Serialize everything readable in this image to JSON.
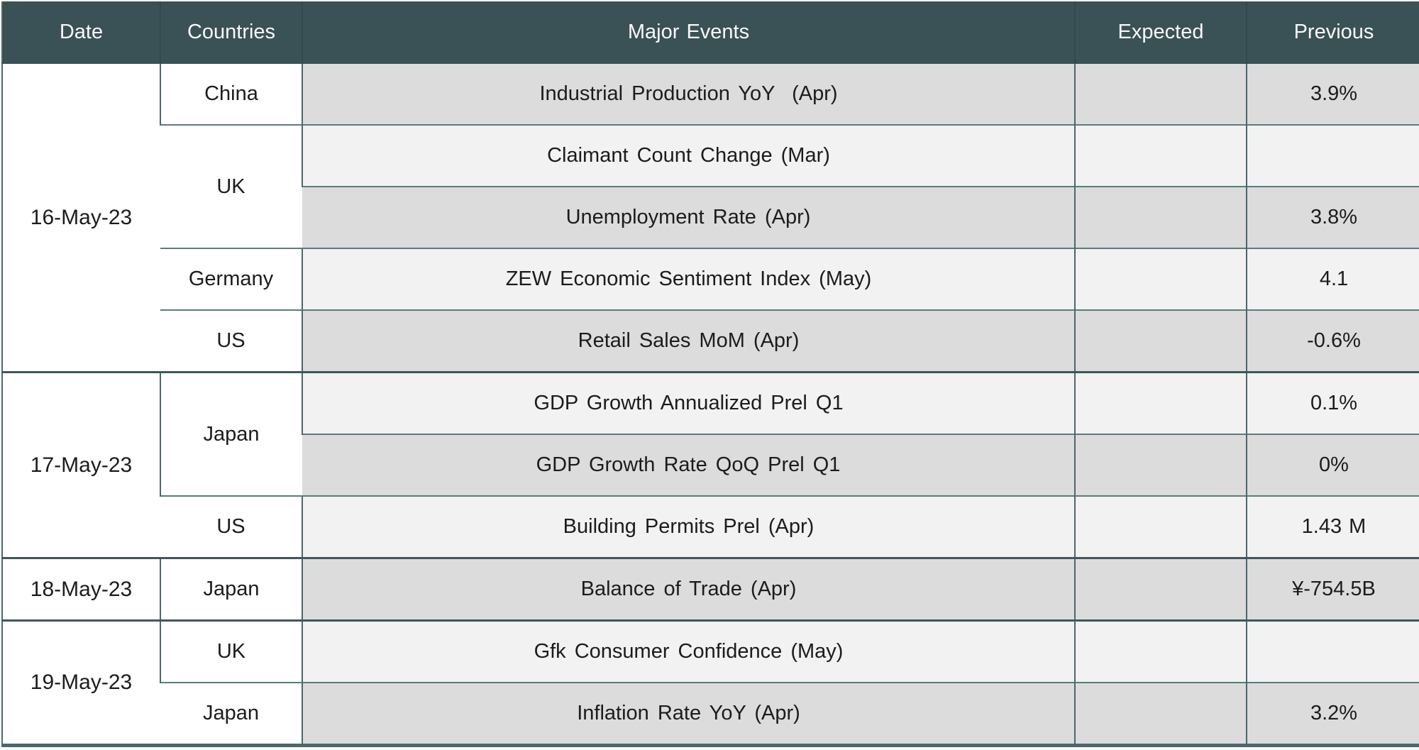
{
  "colors": {
    "header_bg": "#3a5156",
    "header_text": "#f8f8f8",
    "row_dark": "#dcdcdc",
    "row_light": "#f2f2f2",
    "row_border": "#5e7a7d",
    "col_border": "#4b686b",
    "group_border": "#3e585b",
    "frame_border": "#4b686b"
  },
  "table": {
    "columns": [
      "Date",
      "Countries",
      "Major Events",
      "Expected",
      "Previous"
    ],
    "groups": [
      {
        "date": "16-May-23",
        "entries": [
          {
            "country": "China",
            "events": [
              {
                "event": "Industrial Production YoY  (Apr)",
                "expected": "",
                "previous": "3.9%"
              }
            ]
          },
          {
            "country": "UK",
            "events": [
              {
                "event": "Claimant Count Change (Mar)",
                "expected": "",
                "previous": ""
              },
              {
                "event": "Unemployment Rate (Apr)",
                "expected": "",
                "previous": "3.8%"
              }
            ]
          },
          {
            "country": "Germany",
            "events": [
              {
                "event": "ZEW Economic Sentiment Index (May)",
                "expected": "",
                "previous": "4.1"
              }
            ]
          },
          {
            "country": "US",
            "events": [
              {
                "event": "Retail Sales MoM (Apr)",
                "expected": "",
                "previous": "-0.6%"
              }
            ]
          }
        ]
      },
      {
        "date": "17-May-23",
        "entries": [
          {
            "country": "Japan",
            "events": [
              {
                "event": "GDP Growth Annualized Prel Q1",
                "expected": "",
                "previous": "0.1%"
              },
              {
                "event": "GDP Growth Rate QoQ Prel Q1",
                "expected": "",
                "previous": "0%"
              }
            ]
          },
          {
            "country": "US",
            "events": [
              {
                "event": "Building Permits Prel (Apr)",
                "expected": "",
                "previous": "1.43 M"
              }
            ]
          }
        ]
      },
      {
        "date": "18-May-23",
        "entries": [
          {
            "country": "Japan",
            "events": [
              {
                "event": "Balance of Trade (Apr)",
                "expected": "",
                "previous": "¥-754.5B"
              }
            ]
          }
        ]
      },
      {
        "date": "19-May-23",
        "entries": [
          {
            "country": "UK",
            "events": [
              {
                "event": "Gfk Consumer Confidence (May)",
                "expected": "",
                "previous": ""
              }
            ]
          },
          {
            "country": "Japan",
            "events": [
              {
                "event": "Inflation Rate YoY (Apr)",
                "expected": "",
                "previous": "3.2%"
              }
            ]
          }
        ]
      }
    ]
  },
  "chart_data": {
    "type": "table",
    "columns": [
      "Date",
      "Countries",
      "Major Events",
      "Expected",
      "Previous"
    ],
    "rows": [
      [
        "16-May-23",
        "China",
        "Industrial Production YoY (Apr)",
        "",
        "3.9%"
      ],
      [
        "16-May-23",
        "UK",
        "Claimant Count Change (Mar)",
        "",
        ""
      ],
      [
        "16-May-23",
        "UK",
        "Unemployment Rate (Apr)",
        "",
        "3.8%"
      ],
      [
        "16-May-23",
        "Germany",
        "ZEW Economic Sentiment Index (May)",
        "",
        "4.1"
      ],
      [
        "16-May-23",
        "US",
        "Retail Sales MoM (Apr)",
        "",
        "-0.6%"
      ],
      [
        "17-May-23",
        "Japan",
        "GDP Growth Annualized Prel Q1",
        "",
        "0.1%"
      ],
      [
        "17-May-23",
        "Japan",
        "GDP Growth Rate QoQ Prel Q1",
        "",
        "0%"
      ],
      [
        "17-May-23",
        "US",
        "Building Permits Prel (Apr)",
        "",
        "1.43 M"
      ],
      [
        "18-May-23",
        "Japan",
        "Balance of Trade (Apr)",
        "",
        "¥-754.5B"
      ],
      [
        "19-May-23",
        "UK",
        "Gfk Consumer Confidence (May)",
        "",
        ""
      ],
      [
        "19-May-23",
        "Japan",
        "Inflation Rate YoY (Apr)",
        "",
        "3.2%"
      ]
    ]
  }
}
